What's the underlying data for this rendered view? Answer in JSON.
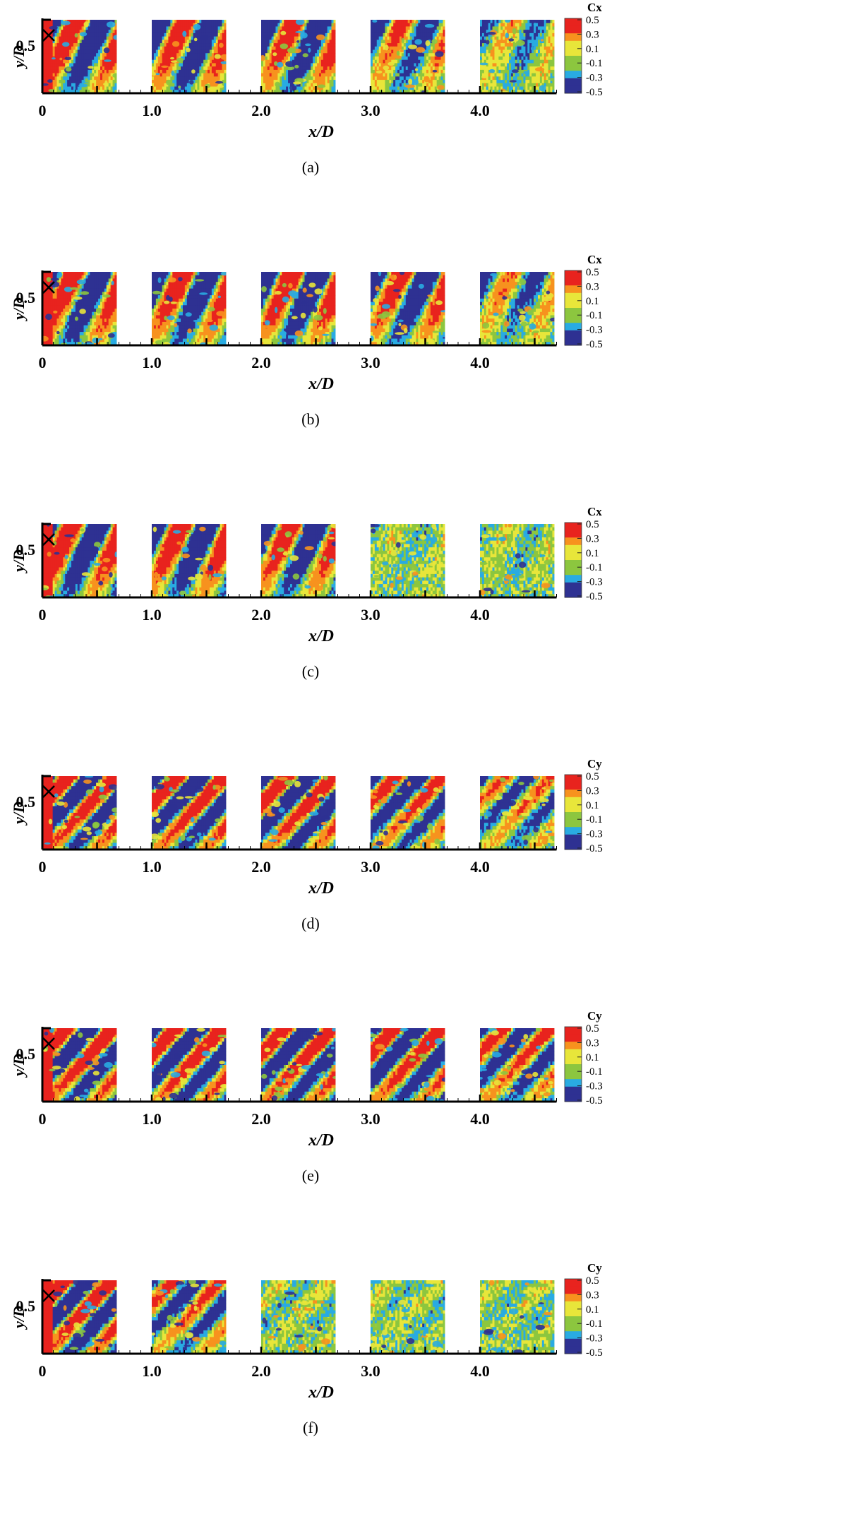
{
  "colors": {
    "red": "#e8231e",
    "orange": "#f7921e",
    "yellow": "#e8e63a",
    "green": "#8cc63f",
    "cyan": "#29abe2",
    "blue": "#2e3192",
    "axis": "#000000"
  },
  "chart_data": [
    {
      "type": "heatmap",
      "caption": "(a)",
      "variable": "Cx",
      "xlabel": "x/D",
      "ylabel": "y/D",
      "x_ticks": [
        "0",
        "1.0",
        "2.0",
        "3.0",
        "4.0"
      ],
      "y_ticks": [
        "0.5"
      ],
      "xlim": [
        0,
        4.7
      ],
      "windows_xD": [
        [
          0,
          0.68
        ],
        [
          1.0,
          1.68
        ],
        [
          2.0,
          2.68
        ],
        [
          3.0,
          3.68
        ],
        [
          4.0,
          4.68
        ]
      ],
      "colorbar": {
        "levels": [
          "0.5",
          "0.3",
          "0.1",
          "-0.1",
          "-0.3",
          "-0.5"
        ]
      },
      "marker": "X",
      "activity": [
        1.0,
        1.0,
        0.95,
        0.6,
        0.3
      ]
    },
    {
      "type": "heatmap",
      "caption": "(b)",
      "variable": "Cx",
      "xlabel": "x/D",
      "ylabel": "y/D",
      "x_ticks": [
        "0",
        "1.0",
        "2.0",
        "3.0",
        "4.0"
      ],
      "y_ticks": [
        "0.5"
      ],
      "xlim": [
        0,
        4.7
      ],
      "windows_xD": [
        [
          0,
          0.68
        ],
        [
          1.0,
          1.68
        ],
        [
          2.0,
          2.68
        ],
        [
          3.0,
          3.68
        ],
        [
          4.0,
          4.68
        ]
      ],
      "colorbar": {
        "levels": [
          "0.5",
          "0.3",
          "0.1",
          "-0.1",
          "-0.3",
          "-0.5"
        ]
      },
      "marker": "X",
      "activity": [
        1.0,
        1.0,
        1.0,
        0.9,
        0.45
      ]
    },
    {
      "type": "heatmap",
      "caption": "(c)",
      "variable": "Cx",
      "xlabel": "x/D",
      "ylabel": "y/D",
      "x_ticks": [
        "0",
        "1.0",
        "2.0",
        "3.0",
        "4.0"
      ],
      "y_ticks": [
        "0.5"
      ],
      "xlim": [
        0,
        4.7
      ],
      "windows_xD": [
        [
          0,
          0.68
        ],
        [
          1.0,
          1.68
        ],
        [
          2.0,
          2.68
        ],
        [
          3.0,
          3.68
        ],
        [
          4.0,
          4.68
        ]
      ],
      "colorbar": {
        "levels": [
          "0.5",
          "0.3",
          "0.1",
          "-0.1",
          "-0.3",
          "-0.5"
        ]
      },
      "marker": "X",
      "activity": [
        1.0,
        1.0,
        0.9,
        0.1,
        0.12
      ]
    },
    {
      "type": "heatmap",
      "caption": "(d)",
      "variable": "Cy",
      "xlabel": "x/D",
      "ylabel": "y/D",
      "x_ticks": [
        "0",
        "1.0",
        "2.0",
        "3.0",
        "4.0"
      ],
      "y_ticks": [
        "0.5"
      ],
      "xlim": [
        0,
        4.7
      ],
      "windows_xD": [
        [
          0,
          0.68
        ],
        [
          1.0,
          1.68
        ],
        [
          2.0,
          2.68
        ],
        [
          3.0,
          3.68
        ],
        [
          4.0,
          4.68
        ]
      ],
      "colorbar": {
        "levels": [
          "0.5",
          "0.3",
          "0.1",
          "-0.1",
          "-0.3",
          "-0.5"
        ]
      },
      "marker": "X",
      "activity": [
        1.0,
        1.0,
        0.95,
        0.75,
        0.5
      ]
    },
    {
      "type": "heatmap",
      "caption": "(e)",
      "variable": "Cy",
      "xlabel": "x/D",
      "ylabel": "y/D",
      "x_ticks": [
        "0",
        "1.0",
        "2.0",
        "3.0",
        "4.0"
      ],
      "y_ticks": [
        "0.5"
      ],
      "xlim": [
        0,
        4.7
      ],
      "windows_xD": [
        [
          0,
          0.68
        ],
        [
          1.0,
          1.68
        ],
        [
          2.0,
          2.68
        ],
        [
          3.0,
          3.68
        ],
        [
          4.0,
          4.68
        ]
      ],
      "colorbar": {
        "levels": [
          "0.5",
          "0.3",
          "0.1",
          "-0.1",
          "-0.3",
          "-0.5"
        ]
      },
      "marker": "X",
      "activity": [
        1.0,
        1.0,
        1.0,
        0.95,
        0.7
      ]
    },
    {
      "type": "heatmap",
      "caption": "(f)",
      "variable": "Cy",
      "xlabel": "x/D",
      "ylabel": "y/D",
      "x_ticks": [
        "0",
        "1.0",
        "2.0",
        "3.0",
        "4.0"
      ],
      "y_ticks": [
        "0.5"
      ],
      "xlim": [
        0,
        4.7
      ],
      "windows_xD": [
        [
          0,
          0.68
        ],
        [
          1.0,
          1.68
        ],
        [
          2.0,
          2.68
        ],
        [
          3.0,
          3.68
        ],
        [
          4.0,
          4.68
        ]
      ],
      "colorbar": {
        "levels": [
          "0.5",
          "0.3",
          "0.1",
          "-0.1",
          "-0.3",
          "-0.5"
        ]
      },
      "marker": "X",
      "activity": [
        1.0,
        0.6,
        0.12,
        0.1,
        0.1
      ]
    }
  ]
}
